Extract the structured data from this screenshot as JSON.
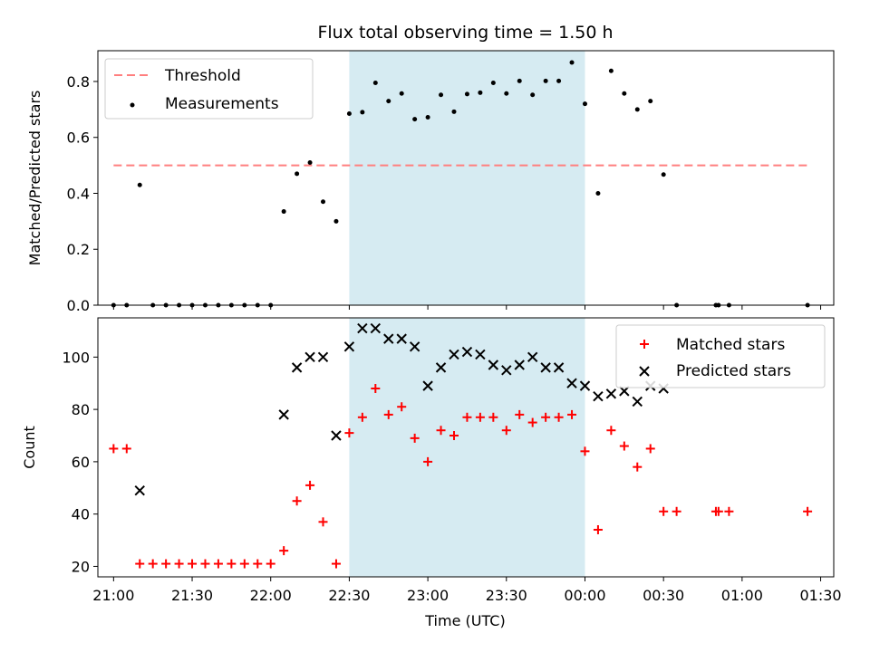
{
  "figure": {
    "title": "Flux total observing time = 1.50 h"
  },
  "colors": {
    "threshold": "#ff7f7f",
    "measurement": "#000000",
    "matched": "#ff0000",
    "predicted": "#000000",
    "shade": "#add8e6"
  },
  "chart_data": [
    {
      "type": "scatter",
      "title": "Flux total observing time = 1.50 h",
      "xlabel": "",
      "ylabel": "Matched/Predicted stars",
      "xlim": [
        "20:54",
        "01:35"
      ],
      "ylim": [
        0,
        0.91
      ],
      "yticks": [
        0.0,
        0.2,
        0.4,
        0.6,
        0.8
      ],
      "ytick_labels": [
        "0.0",
        "0.2",
        "0.4",
        "0.6",
        "0.8"
      ],
      "grid": false,
      "legend": "upper left",
      "shaded_interval": {
        "start": "22:30",
        "end": "00:00"
      },
      "threshold": {
        "name": "Threshold",
        "value": 0.5,
        "x_start": "21:00",
        "x_end": "01:25",
        "style": "dashed"
      },
      "series": [
        {
          "name": "Measurements",
          "x": [
            "21:00",
            "21:05",
            "21:10",
            "21:15",
            "21:20",
            "21:25",
            "21:30",
            "21:35",
            "21:40",
            "21:45",
            "21:50",
            "21:55",
            "22:00",
            "22:05",
            "22:10",
            "22:15",
            "22:20",
            "22:25",
            "22:30",
            "22:35",
            "22:40",
            "22:45",
            "22:50",
            "22:55",
            "23:00",
            "23:05",
            "23:10",
            "23:15",
            "23:20",
            "23:25",
            "23:30",
            "23:35",
            "23:40",
            "23:45",
            "23:50",
            "23:55",
            "00:00",
            "00:05",
            "00:10",
            "00:15",
            "00:20",
            "00:25",
            "00:30",
            "00:35",
            "00:50",
            "00:51",
            "00:55",
            "01:25"
          ],
          "y": [
            0,
            0,
            0.43,
            0,
            0,
            0,
            0,
            0,
            0,
            0,
            0,
            0,
            0,
            0.335,
            0.47,
            0.51,
            0.37,
            0.3,
            0.685,
            0.69,
            0.795,
            0.73,
            0.757,
            0.665,
            0.672,
            0.752,
            0.692,
            0.755,
            0.76,
            0.795,
            0.757,
            0.802,
            0.752,
            0.802,
            0.802,
            0.868,
            0.72,
            0.4,
            0.838,
            0.757,
            0.7,
            0.73,
            0.467,
            0,
            0,
            0,
            0,
            0
          ]
        }
      ]
    },
    {
      "type": "scatter",
      "xlabel": "Time (UTC)",
      "ylabel": "Count",
      "xlim": [
        "20:54",
        "01:35"
      ],
      "ylim": [
        16,
        115
      ],
      "xticks": [
        "21:00",
        "21:30",
        "22:00",
        "22:30",
        "23:00",
        "23:30",
        "00:00",
        "00:30",
        "01:00",
        "01:30"
      ],
      "yticks": [
        20,
        40,
        60,
        80,
        100
      ],
      "ytick_labels": [
        "20",
        "40",
        "60",
        "80",
        "100"
      ],
      "grid": false,
      "legend": "upper right",
      "shaded_interval": {
        "start": "22:30",
        "end": "00:00"
      },
      "series": [
        {
          "name": "Matched stars",
          "marker": "plus",
          "x": [
            "21:00",
            "21:05",
            "21:10",
            "21:15",
            "21:20",
            "21:25",
            "21:30",
            "21:35",
            "21:40",
            "21:45",
            "21:50",
            "21:55",
            "22:00",
            "22:05",
            "22:10",
            "22:15",
            "22:20",
            "22:25",
            "22:30",
            "22:35",
            "22:40",
            "22:45",
            "22:50",
            "22:55",
            "23:00",
            "23:05",
            "23:10",
            "23:15",
            "23:20",
            "23:25",
            "23:30",
            "23:35",
            "23:40",
            "23:45",
            "23:50",
            "23:55",
            "00:00",
            "00:05",
            "00:10",
            "00:15",
            "00:20",
            "00:25",
            "00:30",
            "00:35",
            "00:50",
            "00:51",
            "00:55",
            "01:25"
          ],
          "y": [
            65,
            65,
            21,
            21,
            21,
            21,
            21,
            21,
            21,
            21,
            21,
            21,
            21,
            26,
            45,
            51,
            37,
            21,
            71,
            77,
            88,
            78,
            81,
            69,
            60,
            72,
            70,
            77,
            77,
            77,
            72,
            78,
            75,
            77,
            77,
            78,
            64,
            34,
            72,
            66,
            58,
            65,
            41,
            41,
            41,
            41,
            41,
            41
          ]
        },
        {
          "name": "Predicted stars",
          "marker": "x",
          "x": [
            "21:10",
            "22:05",
            "22:10",
            "22:15",
            "22:20",
            "22:25",
            "22:30",
            "22:35",
            "22:40",
            "22:45",
            "22:50",
            "22:55",
            "23:00",
            "23:05",
            "23:10",
            "23:15",
            "23:20",
            "23:25",
            "23:30",
            "23:35",
            "23:40",
            "23:45",
            "23:50",
            "23:55",
            "00:00",
            "00:05",
            "00:10",
            "00:15",
            "00:20",
            "00:25",
            "00:30"
          ],
          "y": [
            49,
            78,
            96,
            100,
            100,
            70,
            104,
            111,
            111,
            107,
            107,
            104,
            89,
            96,
            101,
            102,
            101,
            97,
            95,
            97,
            100,
            96,
            96,
            90,
            89,
            85,
            86,
            87,
            83,
            89,
            88
          ]
        }
      ]
    }
  ]
}
